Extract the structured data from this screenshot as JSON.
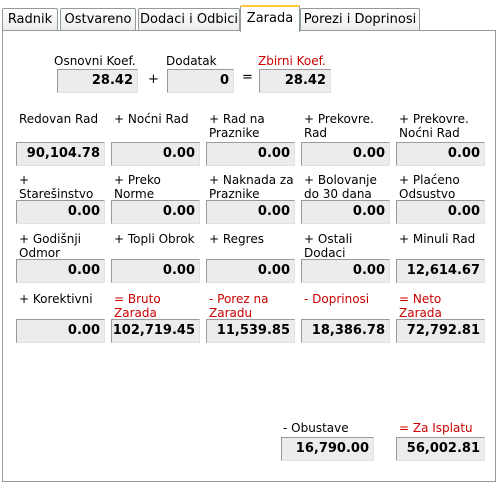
{
  "tabs": [
    {
      "label": "Radnik"
    },
    {
      "label": "Ostvareno"
    },
    {
      "label": "Dodaci i Odbici"
    },
    {
      "label": "Zarada"
    },
    {
      "label": "Porezi i Doprinosi"
    }
  ],
  "coef": {
    "osnovni_label": "Osnovni Koef.",
    "osnovni_value": "28.42",
    "plus": "+",
    "dodatak_label": "Dodatak",
    "dodatak_value": "0",
    "equals": "=",
    "zbirni_label": "Zbirni Koef.",
    "zbirni_value": "28.42"
  },
  "rows": [
    [
      {
        "label": "Redovan Rad",
        "value": "90,104.78"
      },
      {
        "label": "+ Noćni Rad",
        "value": "0.00"
      },
      {
        "label": "+ Rad na\nPraznike",
        "value": "0.00"
      },
      {
        "label": "+ Prekovre.\n   Rad",
        "value": "0.00"
      },
      {
        "label": "+ Prekovre.\n  Noćni Rad",
        "value": "0.00"
      }
    ],
    [
      {
        "label": "        +\nStarešinstvo",
        "value": "0.00"
      },
      {
        "label": "+ Preko\n  Norme",
        "value": "0.00"
      },
      {
        "label": "+ Naknada za\n   Praznike",
        "value": "0.00"
      },
      {
        "label": "+ Bolovanje\ndo 30 dana",
        "value": "0.00"
      },
      {
        "label": "+ Plaćeno\nOdsustvo",
        "value": "0.00"
      }
    ],
    [
      {
        "label": "+ Godišnji\n  Odmor",
        "value": "0.00"
      },
      {
        "label": "+ Topli Obrok",
        "value": "0.00"
      },
      {
        "label": "+ Regres",
        "value": "0.00"
      },
      {
        "label": "+ Ostali\n  Dodaci",
        "value": "0.00"
      },
      {
        "label": "+ Minuli Rad",
        "value": "12,614.67"
      }
    ],
    [
      {
        "label": "+ Korektivni",
        "value": "0.00"
      },
      {
        "label": "= Bruto\nZarada",
        "value": "102,719.45",
        "red": true
      },
      {
        "label": "- Porez na\nZaradu",
        "value": "11,539.85",
        "red": true
      },
      {
        "label": "- Doprinosi",
        "value": "18,386.78",
        "red": true
      },
      {
        "label": " = Neto\nZarada",
        "value": "72,792.81",
        "red": true
      }
    ]
  ],
  "obustave": {
    "label": "- Obustave",
    "value": "16,790.00"
  },
  "za_isplatu": {
    "label": "= Za Isplatu",
    "value": "56,002.81"
  },
  "colors": {
    "accent_red": "#cc0000",
    "tab_highlight": "#ffc83c"
  }
}
